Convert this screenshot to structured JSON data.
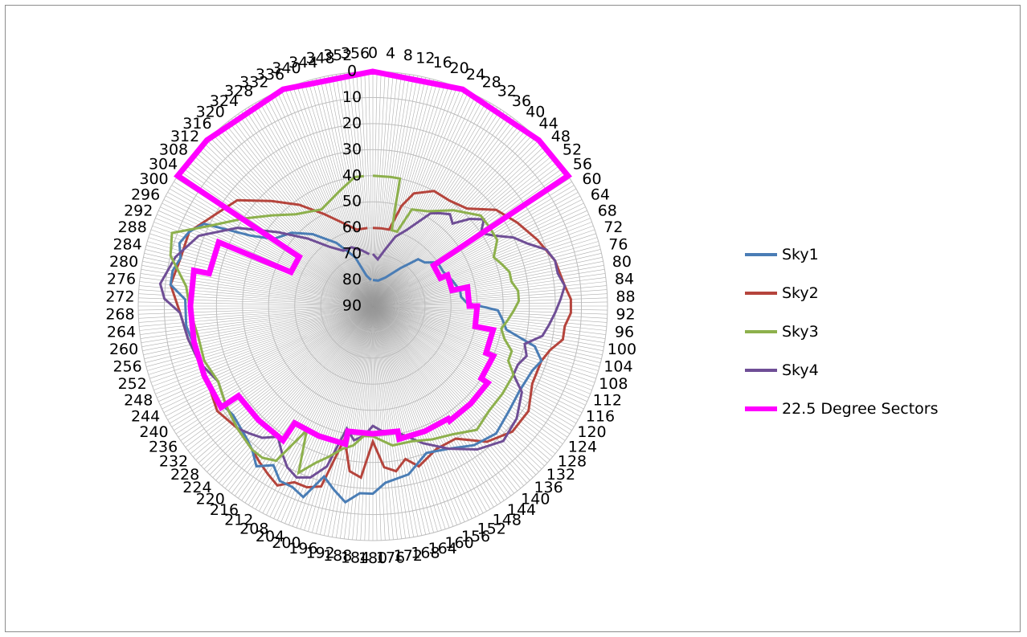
{
  "chart_data": {
    "type": "radar",
    "title": "",
    "angle_ticks": [
      0,
      4,
      8,
      12,
      16,
      20,
      24,
      28,
      32,
      36,
      40,
      44,
      48,
      52,
      56,
      60,
      64,
      68,
      72,
      76,
      80,
      84,
      88,
      92,
      96,
      100,
      104,
      108,
      112,
      116,
      120,
      124,
      128,
      132,
      136,
      140,
      144,
      148,
      152,
      156,
      160,
      164,
      168,
      172,
      176,
      180,
      184,
      188,
      192,
      196,
      200,
      204,
      208,
      212,
      216,
      220,
      224,
      228,
      232,
      236,
      240,
      244,
      248,
      252,
      256,
      260,
      264,
      268,
      272,
      276,
      280,
      284,
      288,
      292,
      296,
      300,
      304,
      308,
      312,
      316,
      320,
      324,
      328,
      332,
      336,
      340,
      344,
      348,
      352,
      356
    ],
    "radial_ticks": [
      0,
      10,
      20,
      30,
      40,
      50,
      60,
      70,
      80,
      90
    ],
    "radial_axis": "reversed",
    "grid": true,
    "legend_position": "right",
    "colors": {
      "sky1": "#4a7db5",
      "sky2": "#b5443c",
      "sky3": "#8db04c",
      "sky4": "#6f4e96",
      "sectors": "#ff00ff",
      "grid": "#bdbdbd",
      "axis_lines": "#9a9a9a"
    },
    "series": [
      {
        "name": "Sky1",
        "color": "#4a7db5",
        "points": [
          [
            0,
            80
          ],
          [
            12,
            80
          ],
          [
            24,
            78
          ],
          [
            36,
            72
          ],
          [
            44,
            65
          ],
          [
            50,
            64
          ],
          [
            56,
            60
          ],
          [
            64,
            60
          ],
          [
            72,
            58
          ],
          [
            80,
            56
          ],
          [
            84,
            56
          ],
          [
            88,
            54
          ],
          [
            92,
            42
          ],
          [
            96,
            40
          ],
          [
            100,
            38
          ],
          [
            104,
            26
          ],
          [
            108,
            22
          ],
          [
            112,
            24
          ],
          [
            120,
            25
          ],
          [
            128,
            24
          ],
          [
            136,
            22
          ],
          [
            144,
            24
          ],
          [
            152,
            28
          ],
          [
            160,
            30
          ],
          [
            168,
            24
          ],
          [
            176,
            22
          ],
          [
            180,
            18
          ],
          [
            184,
            18
          ],
          [
            188,
            14
          ],
          [
            192,
            18
          ],
          [
            196,
            22
          ],
          [
            200,
            12
          ],
          [
            204,
            14
          ],
          [
            208,
            14
          ],
          [
            212,
            18
          ],
          [
            216,
            14
          ],
          [
            220,
            18
          ],
          [
            224,
            20
          ],
          [
            232,
            22
          ],
          [
            240,
            20
          ],
          [
            248,
            20
          ],
          [
            256,
            20
          ],
          [
            264,
            18
          ],
          [
            272,
            18
          ],
          [
            276,
            12
          ],
          [
            280,
            12
          ],
          [
            284,
            14
          ],
          [
            288,
            12
          ],
          [
            292,
            14
          ],
          [
            296,
            18
          ],
          [
            300,
            36
          ],
          [
            304,
            44
          ],
          [
            312,
            48
          ],
          [
            320,
            54
          ],
          [
            330,
            62
          ],
          [
            340,
            70
          ],
          [
            348,
            78
          ],
          [
            356,
            80
          ]
        ]
      },
      {
        "name": "Sky2",
        "color": "#b5443c",
        "points": [
          [
            0,
            60
          ],
          [
            6,
            60
          ],
          [
            12,
            60
          ],
          [
            16,
            50
          ],
          [
            20,
            44
          ],
          [
            28,
            40
          ],
          [
            36,
            40
          ],
          [
            44,
            38
          ],
          [
            52,
            30
          ],
          [
            60,
            26
          ],
          [
            68,
            22
          ],
          [
            76,
            18
          ],
          [
            84,
            16
          ],
          [
            88,
            14
          ],
          [
            92,
            14
          ],
          [
            96,
            16
          ],
          [
            100,
            16
          ],
          [
            104,
            20
          ],
          [
            108,
            22
          ],
          [
            116,
            22
          ],
          [
            124,
            18
          ],
          [
            132,
            18
          ],
          [
            140,
            22
          ],
          [
            148,
            30
          ],
          [
            156,
            30
          ],
          [
            164,
            26
          ],
          [
            168,
            30
          ],
          [
            172,
            26
          ],
          [
            176,
            28
          ],
          [
            180,
            38
          ],
          [
            184,
            24
          ],
          [
            188,
            26
          ],
          [
            192,
            38
          ],
          [
            196,
            18
          ],
          [
            200,
            16
          ],
          [
            204,
            16
          ],
          [
            208,
            12
          ],
          [
            212,
            14
          ],
          [
            216,
            16
          ],
          [
            220,
            18
          ],
          [
            228,
            20
          ],
          [
            236,
            18
          ],
          [
            244,
            20
          ],
          [
            252,
            20
          ],
          [
            260,
            18
          ],
          [
            268,
            16
          ],
          [
            276,
            12
          ],
          [
            284,
            14
          ],
          [
            292,
            14
          ],
          [
            300,
            20
          ],
          [
            308,
            24
          ],
          [
            316,
            34
          ],
          [
            324,
            42
          ],
          [
            332,
            50
          ],
          [
            340,
            56
          ],
          [
            348,
            60
          ],
          [
            356,
            60
          ]
        ]
      },
      {
        "name": "Sky3",
        "color": "#8db04c",
        "points": [
          [
            0,
            40
          ],
          [
            8,
            40
          ],
          [
            12,
            40
          ],
          [
            14,
            60
          ],
          [
            18,
            60
          ],
          [
            22,
            50
          ],
          [
            30,
            48
          ],
          [
            40,
            42
          ],
          [
            50,
            36
          ],
          [
            56,
            36
          ],
          [
            62,
            36
          ],
          [
            68,
            40
          ],
          [
            72,
            38
          ],
          [
            76,
            36
          ],
          [
            80,
            36
          ],
          [
            84,
            34
          ],
          [
            88,
            34
          ],
          [
            92,
            36
          ],
          [
            96,
            38
          ],
          [
            100,
            40
          ],
          [
            104,
            38
          ],
          [
            108,
            34
          ],
          [
            112,
            34
          ],
          [
            116,
            30
          ],
          [
            124,
            30
          ],
          [
            132,
            30
          ],
          [
            140,
            28
          ],
          [
            148,
            32
          ],
          [
            156,
            34
          ],
          [
            164,
            36
          ],
          [
            172,
            36
          ],
          [
            180,
            40
          ],
          [
            184,
            40
          ],
          [
            188,
            36
          ],
          [
            192,
            34
          ],
          [
            196,
            30
          ],
          [
            200,
            26
          ],
          [
            204,
            20
          ],
          [
            208,
            36
          ],
          [
            212,
            20
          ],
          [
            216,
            18
          ],
          [
            220,
            18
          ],
          [
            228,
            20
          ],
          [
            236,
            22
          ],
          [
            244,
            24
          ],
          [
            252,
            22
          ],
          [
            260,
            22
          ],
          [
            268,
            20
          ],
          [
            276,
            18
          ],
          [
            284,
            10
          ],
          [
            290,
            8
          ],
          [
            296,
            20
          ],
          [
            304,
            30
          ],
          [
            312,
            38
          ],
          [
            320,
            44
          ],
          [
            332,
            48
          ],
          [
            344,
            44
          ],
          [
            352,
            40
          ],
          [
            356,
            40
          ]
        ]
      },
      {
        "name": "Sky4",
        "color": "#6f4e96",
        "points": [
          [
            0,
            70
          ],
          [
            6,
            72
          ],
          [
            12,
            68
          ],
          [
            18,
            62
          ],
          [
            24,
            58
          ],
          [
            32,
            48
          ],
          [
            36,
            46
          ],
          [
            40,
            44
          ],
          [
            44,
            46
          ],
          [
            48,
            40
          ],
          [
            52,
            36
          ],
          [
            56,
            40
          ],
          [
            60,
            36
          ],
          [
            64,
            30
          ],
          [
            68,
            26
          ],
          [
            72,
            20
          ],
          [
            76,
            18
          ],
          [
            80,
            18
          ],
          [
            84,
            16
          ],
          [
            88,
            18
          ],
          [
            92,
            20
          ],
          [
            96,
            22
          ],
          [
            100,
            24
          ],
          [
            104,
            30
          ],
          [
            108,
            28
          ],
          [
            112,
            30
          ],
          [
            116,
            30
          ],
          [
            120,
            24
          ],
          [
            128,
            20
          ],
          [
            136,
            18
          ],
          [
            144,
            22
          ],
          [
            152,
            28
          ],
          [
            160,
            34
          ],
          [
            168,
            40
          ],
          [
            176,
            42
          ],
          [
            180,
            44
          ],
          [
            184,
            40
          ],
          [
            188,
            38
          ],
          [
            192,
            42
          ],
          [
            196,
            26
          ],
          [
            200,
            20
          ],
          [
            204,
            18
          ],
          [
            208,
            20
          ],
          [
            212,
            24
          ],
          [
            216,
            28
          ],
          [
            220,
            24
          ],
          [
            224,
            22
          ],
          [
            228,
            20
          ],
          [
            236,
            22
          ],
          [
            244,
            24
          ],
          [
            252,
            20
          ],
          [
            260,
            18
          ],
          [
            268,
            16
          ],
          [
            272,
            10
          ],
          [
            276,
            8
          ],
          [
            284,
            12
          ],
          [
            292,
            18
          ],
          [
            300,
            30
          ],
          [
            308,
            44
          ],
          [
            316,
            54
          ],
          [
            324,
            62
          ],
          [
            332,
            66
          ],
          [
            340,
            66
          ],
          [
            348,
            68
          ],
          [
            356,
            70
          ]
        ]
      },
      {
        "name": "22.5 Degree Sectors",
        "color": "#ff00ff",
        "points": [
          [
            0,
            0
          ],
          [
            22.5,
            0
          ],
          [
            45,
            0
          ],
          [
            56.25,
            0
          ],
          [
            56.25,
            62
          ],
          [
            67.5,
            62
          ],
          [
            67.5,
            59
          ],
          [
            78.75,
            59
          ],
          [
            78.75,
            53
          ],
          [
            90,
            53
          ],
          [
            90,
            50
          ],
          [
            101.25,
            50
          ],
          [
            101.25,
            43
          ],
          [
            112.5,
            43
          ],
          [
            112.5,
            40
          ],
          [
            123.75,
            40
          ],
          [
            123.75,
            37
          ],
          [
            135,
            37
          ],
          [
            135,
            37
          ],
          [
            146.25,
            37
          ],
          [
            146.25,
            38
          ],
          [
            157.5,
            38
          ],
          [
            157.5,
            38
          ],
          [
            168.75,
            38
          ],
          [
            168.75,
            41
          ],
          [
            180,
            41
          ],
          [
            191.25,
            41
          ],
          [
            191.25,
            36
          ],
          [
            202.5,
            36
          ],
          [
            202.5,
            36
          ],
          [
            213.75,
            36
          ],
          [
            213.75,
            28
          ],
          [
            225,
            28
          ],
          [
            225,
            28
          ],
          [
            236.25,
            28
          ],
          [
            236.25,
            20
          ],
          [
            247.5,
            20
          ],
          [
            247.5,
            20
          ],
          [
            258.75,
            20
          ],
          [
            258.75,
            20
          ],
          [
            270,
            20
          ],
          [
            270,
            20
          ],
          [
            281.25,
            20
          ],
          [
            281.25,
            26
          ],
          [
            292.5,
            26
          ],
          [
            292.5,
            56
          ],
          [
            303.75,
            56
          ],
          [
            303.75,
            0
          ],
          [
            315,
            0
          ],
          [
            337.5,
            0
          ],
          [
            360,
            0
          ]
        ]
      }
    ]
  },
  "legend": {
    "items": [
      {
        "label": "Sky1",
        "color": "#4a7db5"
      },
      {
        "label": "Sky2",
        "color": "#b5443c"
      },
      {
        "label": "Sky3",
        "color": "#8db04c"
      },
      {
        "label": "Sky4",
        "color": "#6f4e96"
      },
      {
        "label": "22.5 Degree Sectors",
        "color": "#ff00ff"
      }
    ]
  }
}
